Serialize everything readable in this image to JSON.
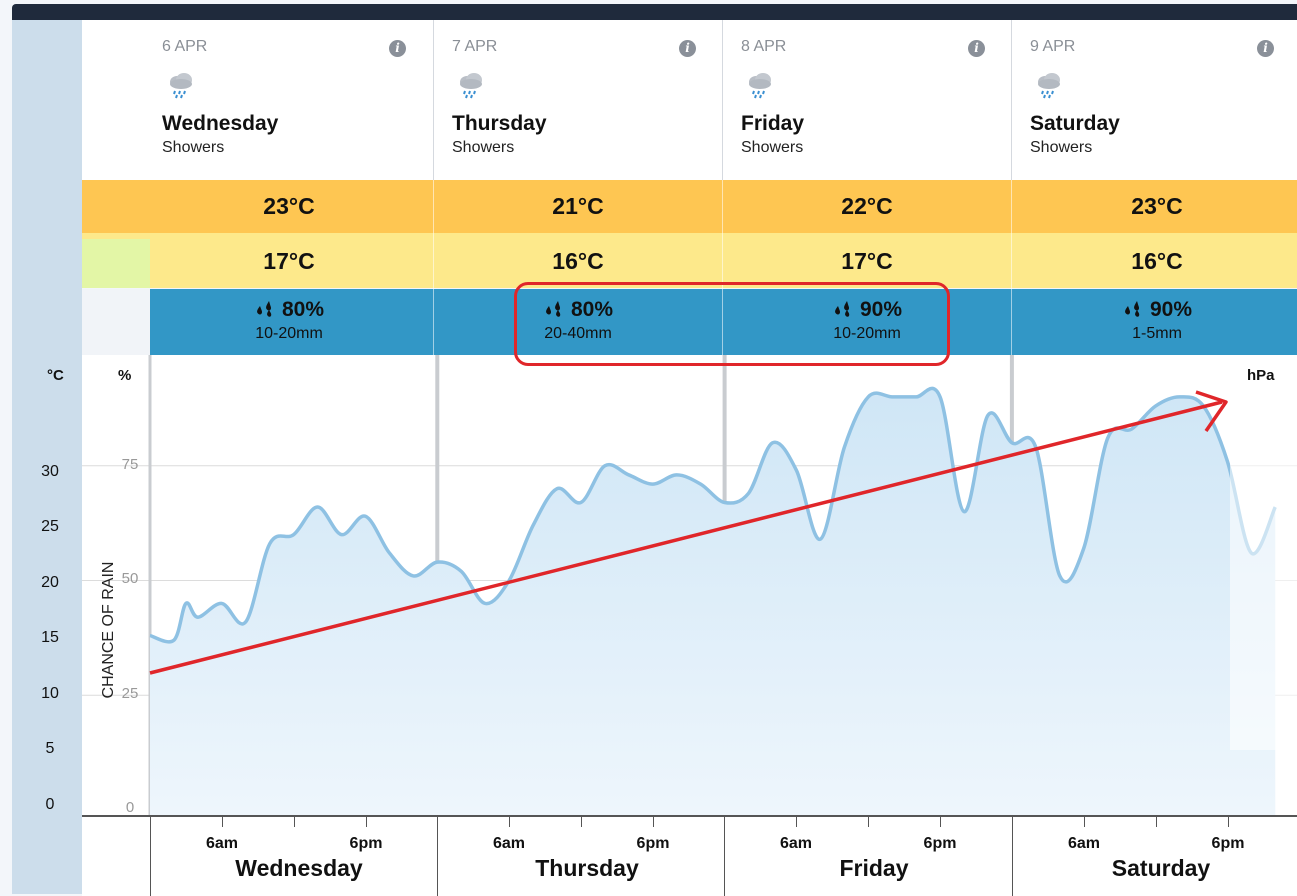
{
  "days": [
    {
      "date": "6 APR",
      "name": "Wednesday",
      "summary": "Showers",
      "max": "23°C",
      "min": "17°C",
      "rain_chance": "80%",
      "rain_amount": "10-20mm",
      "icon": "rain-cloud-icon"
    },
    {
      "date": "7 APR",
      "name": "Thursday",
      "summary": "Showers",
      "max": "21°C",
      "min": "16°C",
      "rain_chance": "80%",
      "rain_amount": "20-40mm",
      "icon": "rain-cloud-icon"
    },
    {
      "date": "8 APR",
      "name": "Friday",
      "summary": "Showers",
      "max": "22°C",
      "min": "17°C",
      "rain_chance": "90%",
      "rain_amount": "10-20mm",
      "icon": "rain-cloud-icon"
    },
    {
      "date": "9 APR",
      "name": "Saturday",
      "summary": "Showers",
      "max": "23°C",
      "min": "16°C",
      "rain_chance": "90%",
      "rain_amount": "1-5mm",
      "icon": "rain-cloud-icon"
    }
  ],
  "chart": {
    "unit_celsius": "°C",
    "unit_percent": "%",
    "unit_pressure": "hPa",
    "rain_axis_label": "CHANCE OF RAIN",
    "celsius_ticks": [
      "30",
      "25",
      "20",
      "15",
      "10",
      "5",
      "0"
    ],
    "percent_ticks": [
      "75",
      "50",
      "25",
      "0"
    ],
    "time_labels": [
      "6am",
      "6pm"
    ]
  },
  "chart_data": {
    "type": "area",
    "ylabel": "CHANCE OF RAIN",
    "ylim": [
      0,
      100
    ],
    "x": [
      "Wed 00",
      "Wed 02",
      "Wed 03",
      "Wed 04",
      "Wed 06",
      "Wed 08",
      "Wed 10",
      "Wed 12",
      "Wed 14",
      "Wed 16",
      "Wed 18",
      "Wed 20",
      "Wed 22",
      "Thu 00",
      "Thu 02",
      "Thu 04",
      "Thu 06",
      "Thu 08",
      "Thu 10",
      "Thu 12",
      "Thu 14",
      "Thu 16",
      "Thu 18",
      "Thu 20",
      "Thu 22",
      "Fri 00",
      "Fri 02",
      "Fri 04",
      "Fri 06",
      "Fri 08",
      "Fri 10",
      "Fri 12",
      "Fri 14",
      "Fri 16",
      "Fri 18",
      "Fri 20",
      "Fri 22",
      "Sat 00",
      "Sat 02",
      "Sat 04",
      "Sat 06",
      "Sat 08",
      "Sat 10",
      "Sat 12",
      "Sat 14",
      "Sat 16",
      "Sat 18",
      "Sat 20",
      "Sat 22"
    ],
    "values": [
      38,
      37,
      45,
      42,
      45,
      41,
      58,
      60,
      66,
      60,
      64,
      56,
      51,
      54,
      52,
      45,
      50,
      62,
      70,
      67,
      75,
      73,
      71,
      73,
      71,
      67,
      69,
      80,
      74,
      59,
      79,
      90,
      90,
      90,
      90,
      65,
      86,
      80,
      79,
      51,
      57,
      81,
      83,
      88,
      90,
      88,
      76,
      56,
      66
    ],
    "annotations": [
      "highlight box around Thursday and Friday rain cells",
      "rising arrow across chart"
    ]
  }
}
